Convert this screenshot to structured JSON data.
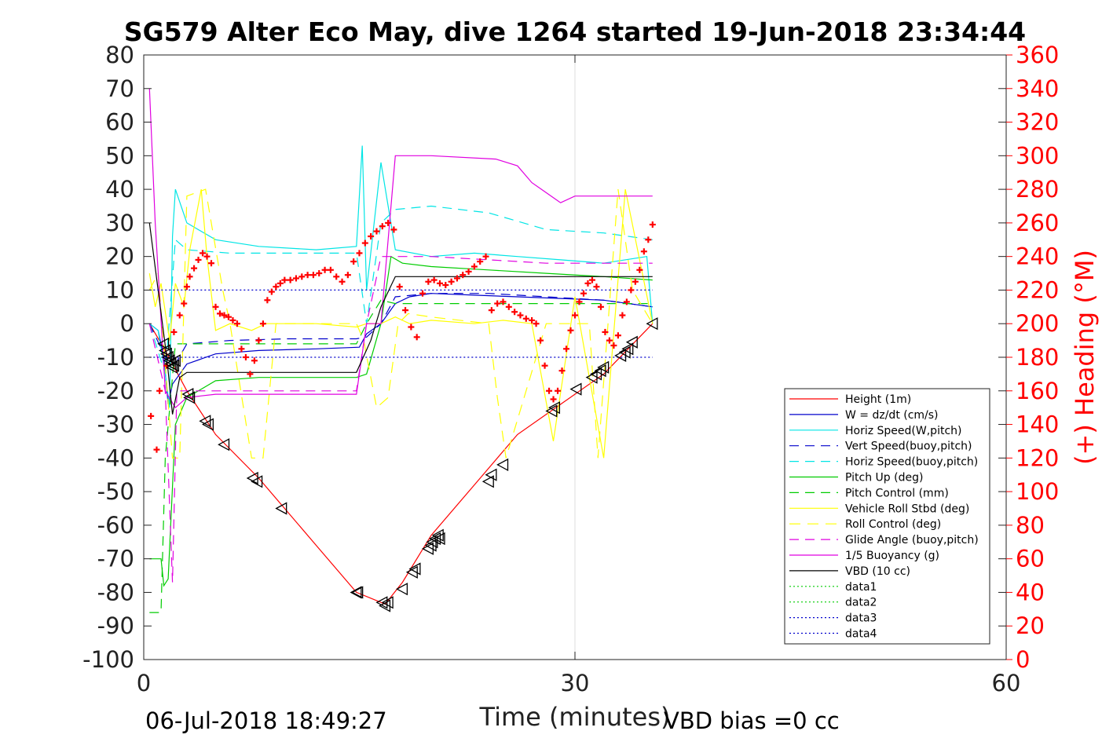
{
  "chart_data": {
    "type": "line",
    "title": "SG579 Alter Eco May, dive 1264 started 19-Jun-2018 23:34:44",
    "xlabel": "Time (minutes)",
    "ylabel_right": "(+) Heading (°M)",
    "footer_left": "06-Jul-2018 18:49:27",
    "footer_right": "VBD bias =0 cc",
    "xlim": [
      0,
      60
    ],
    "ylim_left": [
      -100,
      80
    ],
    "ylim_right": [
      0,
      360
    ],
    "xticks": [
      0,
      30,
      60
    ],
    "yticks_left": [
      80,
      70,
      60,
      50,
      40,
      30,
      20,
      10,
      0,
      -10,
      -20,
      -30,
      -40,
      -50,
      -60,
      -70,
      -80,
      -90,
      -100
    ],
    "yticks_right": [
      360,
      340,
      320,
      300,
      280,
      260,
      240,
      220,
      200,
      180,
      160,
      140,
      120,
      100,
      80,
      60,
      40,
      20,
      0
    ],
    "grid": "x",
    "legend_position": "lower-right",
    "series": [
      {
        "name": "Height (1m)",
        "color": "#ff0000",
        "dash": "",
        "x": [
          0.4,
          1.5,
          3,
          5,
          8,
          12,
          14.8,
          16.8,
          18,
          20,
          23,
          26,
          29,
          32,
          35.4
        ],
        "y": [
          0,
          -8,
          -20,
          -33,
          -46,
          -66,
          -80,
          -83.5,
          -77,
          -63,
          -48,
          -33,
          -24,
          -15,
          0
        ]
      },
      {
        "name": "W = dz/dt (cm/s)",
        "color": "#0000cc",
        "dash": "",
        "x": [
          0.4,
          1,
          1.4,
          1.7,
          2,
          3,
          5,
          8,
          12,
          15,
          15.5,
          16.5,
          17.5,
          18.5,
          20,
          23,
          26,
          29,
          32,
          35.4
        ],
        "y": [
          0,
          -2,
          -10,
          -24,
          -18,
          -12,
          -9,
          -8,
          -7.5,
          -7,
          -3,
          0,
          6,
          8,
          9,
          8.5,
          8,
          7.5,
          7,
          5
        ]
      },
      {
        "name": "Horiz Speed(W,pitch)",
        "color": "#00e5e5",
        "dash": "",
        "x": [
          0.4,
          1,
          1.5,
          1.8,
          2,
          2.2,
          3,
          5,
          8,
          12,
          14.8,
          15.2,
          15.5,
          16.5,
          17.5,
          20,
          23,
          26,
          29,
          32,
          35,
          35.4
        ],
        "y": [
          0,
          -2,
          -15,
          -25,
          26,
          40,
          30,
          25,
          23,
          22,
          23,
          53,
          10,
          48,
          22,
          20,
          21,
          20,
          19,
          18,
          20,
          0
        ]
      },
      {
        "name": "Vert Speed(buoy,pitch)",
        "color": "#0000cc",
        "dash": "12,8",
        "x": [
          0.4,
          1.5,
          2.2,
          3,
          6,
          10,
          14.8,
          15.5,
          16.5,
          17.5,
          20,
          24,
          28,
          32,
          35.4
        ],
        "y": [
          0,
          -10,
          -12,
          -6,
          -5,
          -4.5,
          -4.5,
          -4,
          0,
          8,
          9,
          9,
          8,
          7,
          5
        ]
      },
      {
        "name": "Horiz Speed(buoy,pitch)",
        "color": "#00e5e5",
        "dash": "12,8",
        "x": [
          0.4,
          1.5,
          2.2,
          3,
          6,
          10,
          14.8,
          15.5,
          16.5,
          17.5,
          20,
          24,
          28,
          32,
          35.4
        ],
        "y": [
          0,
          -15,
          25,
          22,
          21,
          21,
          21,
          0,
          30,
          34,
          35,
          33,
          28,
          27,
          25
        ]
      },
      {
        "name": "Pitch Up (deg)",
        "color": "#00cc00",
        "dash": "",
        "x": [
          0.4,
          1.2,
          1.4,
          1.7,
          2.2,
          3,
          5,
          8,
          12,
          14.8,
          15.5,
          16.5,
          17.2,
          18,
          20,
          24,
          28,
          32,
          35.4
        ],
        "y": [
          -70,
          -70,
          -78,
          -76,
          -30,
          -22,
          -17,
          -16,
          -16,
          -16,
          -15,
          0,
          20,
          18,
          17,
          16,
          15,
          14,
          13
        ]
      },
      {
        "name": "Pitch Control (mm)",
        "color": "#00cc00",
        "dash": "12,8",
        "x": [
          0.4,
          1.2,
          1.5,
          2.2,
          3,
          8,
          14.8,
          15.5,
          16.5,
          17.5,
          20,
          28,
          32,
          35.4
        ],
        "y": [
          -86,
          -86,
          -40,
          -6,
          -6,
          -6,
          -6,
          0,
          7,
          6,
          6,
          6,
          6,
          6
        ]
      },
      {
        "name": "Vehicle Roll Stbd (deg)",
        "color": "#ffff00",
        "dash": "",
        "x": [
          0.4,
          0.8,
          1.2,
          1.8,
          2.2,
          2.8,
          3.2,
          4,
          4.4,
          5,
          6,
          7.5,
          8.5,
          10,
          12,
          14.8,
          15.5,
          16.5,
          17.5,
          18.5,
          20,
          23,
          25,
          27,
          28.5,
          30,
          32,
          33.5,
          35.4
        ],
        "y": [
          15,
          5,
          12,
          -5,
          12,
          5,
          22,
          40,
          20,
          -2,
          0,
          -2,
          0,
          0,
          0,
          -1,
          0,
          0,
          2,
          0,
          1,
          0,
          1,
          0,
          -35,
          8,
          -40,
          40,
          0
        ]
      },
      {
        "name": "Roll Control (deg)",
        "color": "#ffff00",
        "dash": "14,9",
        "x": [
          0.4,
          1,
          2,
          2.5,
          3,
          4.3,
          5.5,
          6,
          7.5,
          8.3,
          9.2,
          10,
          14.8,
          15.3,
          16.2,
          17,
          17.7,
          18.4,
          20,
          24,
          24.6,
          25.2,
          28,
          29,
          31,
          31.6,
          33,
          34,
          35.4
        ],
        "y": [
          10,
          15,
          -40,
          -40,
          38,
          40,
          10,
          0,
          -40,
          -40,
          0,
          0,
          0,
          -5,
          -25,
          -22,
          0,
          3,
          2,
          0,
          -22,
          -40,
          0,
          0,
          0,
          -40,
          40,
          10,
          0
        ]
      },
      {
        "name": "Glide Angle (buoy,pitch)",
        "color": "#e000e0",
        "dash": "12,8",
        "x": [
          0.4,
          1.5,
          2,
          2.3,
          3,
          5,
          8,
          12,
          14.8,
          15.5,
          16.5,
          17.5,
          20,
          24,
          28,
          32,
          35.4
        ],
        "y": [
          0,
          -20,
          -77,
          -20,
          -20,
          -20,
          -20,
          -20,
          -20,
          0,
          20,
          20,
          20,
          19,
          18,
          18,
          18
        ]
      },
      {
        "name": "1/5 Buoyancy (g)",
        "color": "#e000e0",
        "dash": "",
        "x": [
          0.4,
          0.8,
          1.5,
          2.2,
          3,
          5,
          8,
          12,
          14.8,
          15.5,
          16.5,
          17.5,
          20,
          24.5,
          26,
          27,
          28,
          29,
          30,
          34,
          35.4
        ],
        "y": [
          70,
          30,
          -20,
          -25,
          -22,
          -21,
          -21,
          -21,
          -21,
          0,
          0,
          50,
          50,
          49,
          47,
          42,
          39,
          36,
          38,
          38,
          38
        ]
      },
      {
        "name": "VBD (10 cc)",
        "color": "#000000",
        "dash": "",
        "x": [
          0.4,
          1.6,
          2,
          2.5,
          3,
          5,
          8,
          12,
          14.8,
          15.8,
          16.5,
          17.5,
          20,
          24,
          28,
          32,
          35.4
        ],
        "y": [
          30,
          -10,
          -27,
          -16,
          -14.5,
          -14.5,
          -14.5,
          -14.5,
          -14.5,
          -5,
          5,
          14,
          14,
          14,
          14,
          14,
          14
        ]
      },
      {
        "name": "data1",
        "color": "#00cc00",
        "dash": "2,3",
        "x": [],
        "y": []
      },
      {
        "name": "data2",
        "color": "#00cc00",
        "dash": "2,3",
        "x": [],
        "y": []
      },
      {
        "name": "data3",
        "color": "#0000cc",
        "dash": "2,3",
        "x": [
          0.4,
          35.4
        ],
        "y": [
          10,
          10
        ]
      },
      {
        "name": "data4",
        "color": "#0000cc",
        "dash": "2,3",
        "x": [
          0.4,
          35.4
        ],
        "y": [
          -10,
          -10
        ]
      }
    ],
    "heading": {
      "name": "Heading",
      "axis": "right",
      "color": "#ff0000",
      "marker": "+",
      "x": [
        0.5,
        0.9,
        1.1,
        1.6,
        2.1,
        2.5,
        2.8,
        3.0,
        3.2,
        3.5,
        3.8,
        4.1,
        4.4,
        4.7,
        5.0,
        5.3,
        5.6,
        5.9,
        6.2,
        6.5,
        6.8,
        7.1,
        7.4,
        7.7,
        8.0,
        8.3,
        8.6,
        8.9,
        9.2,
        9.5,
        9.8,
        10.2,
        10.6,
        11,
        11.4,
        11.8,
        12.2,
        12.6,
        13,
        13.4,
        13.8,
        14.2,
        14.6,
        15,
        15.4,
        15.8,
        16.2,
        16.6,
        17,
        17.4,
        17.8,
        18.2,
        18.6,
        19,
        19.4,
        19.8,
        20.2,
        20.6,
        21,
        21.4,
        21.8,
        22.2,
        22.6,
        23,
        23.4,
        23.8,
        24.2,
        24.6,
        25,
        25.4,
        25.8,
        26.2,
        26.6,
        27,
        27.3,
        27.6,
        27.9,
        28.2,
        28.5,
        28.8,
        29.1,
        29.4,
        29.7,
        30.0,
        30.3,
        30.6,
        30.9,
        31.2,
        31.5,
        31.8,
        32.1,
        32.4,
        32.7,
        33.0,
        33.3,
        33.6,
        33.9,
        34.2,
        34.5,
        34.8,
        35.1,
        35.4
      ],
      "y": [
        145,
        125,
        160,
        175,
        195,
        205,
        212,
        222,
        228,
        233,
        238,
        242,
        240,
        236,
        210,
        206,
        205,
        204,
        202,
        200,
        185,
        180,
        170,
        178,
        190,
        200,
        214,
        219,
        222,
        224,
        226,
        226,
        227,
        228,
        229,
        229,
        230,
        232,
        232,
        228,
        225,
        229,
        237,
        242,
        248,
        252,
        255,
        258,
        260,
        256,
        222,
        208,
        198,
        192,
        218,
        225,
        226,
        224,
        223,
        225,
        227,
        229,
        231,
        234,
        237,
        240,
        208,
        212,
        213,
        210,
        207,
        205,
        203,
        202,
        200,
        190,
        175,
        160,
        155,
        160,
        172,
        185,
        196,
        205,
        213,
        218,
        224,
        226,
        222,
        210,
        195,
        190,
        187,
        193,
        205,
        213,
        220,
        225,
        232,
        243,
        250,
        259
      ]
    },
    "waypoints": {
      "name": "Markers",
      "color": "#000000",
      "x": [
        1.4,
        1.5,
        1.6,
        1.7,
        1.8,
        1.9,
        2.0,
        2.1,
        2.2,
        3.1,
        3.2,
        4.3,
        4.5,
        5.6,
        7.6,
        7.9,
        9.6,
        14.8,
        14.9,
        16.6,
        16.8,
        17.0,
        18.0,
        18.7,
        18.9,
        19.8,
        20.0,
        20.1,
        20.3,
        20.5,
        20.6,
        24.0,
        24.2,
        25.0,
        28.4,
        28.6,
        30.1,
        31.2,
        31.5,
        31.8,
        32.0,
        33.2,
        33.5,
        33.7,
        34.0,
        35.4
      ],
      "y": [
        -6,
        -8,
        -9,
        -10,
        -11,
        -12,
        -13,
        -12.5,
        -11,
        -21,
        -22,
        -29,
        -30,
        -36,
        -46,
        -47,
        -55,
        -80,
        -80,
        -83,
        -84,
        -83,
        -79,
        -74,
        -73,
        -67,
        -66,
        -65,
        -64,
        -63,
        -64,
        -47,
        -45,
        -42,
        -26,
        -25,
        -19.5,
        -16,
        -15,
        -14,
        -13,
        -9.5,
        -8.5,
        -7.5,
        -5.5,
        0
      ]
    }
  }
}
